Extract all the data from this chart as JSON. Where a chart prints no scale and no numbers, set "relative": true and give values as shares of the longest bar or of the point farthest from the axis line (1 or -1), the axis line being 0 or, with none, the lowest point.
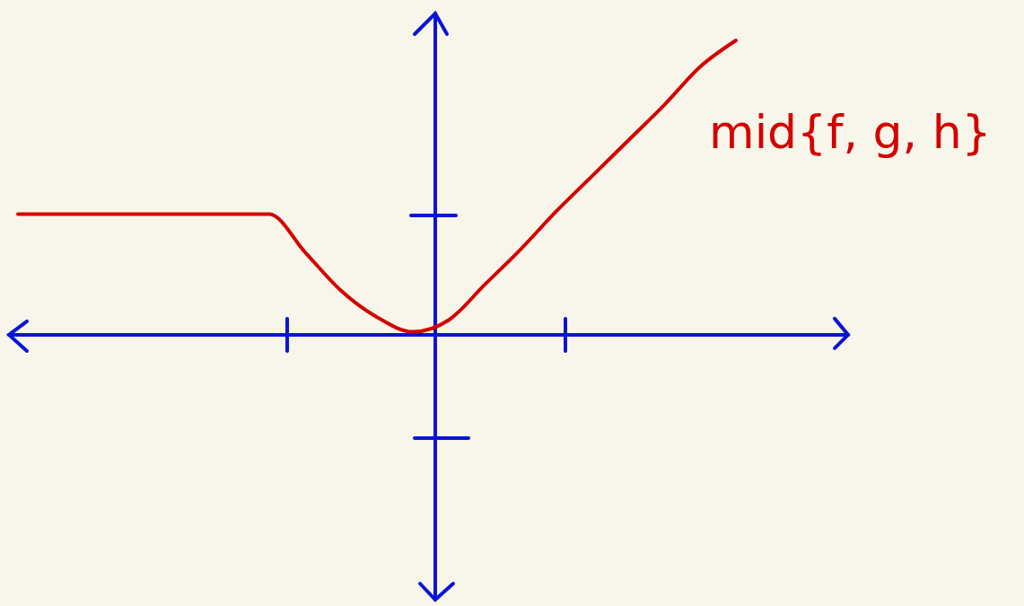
{
  "chart_data": {
    "type": "line",
    "relative": true,
    "categories": [
      null,
      null,
      null,
      null,
      null,
      null,
      null,
      null,
      null,
      null,
      null,
      null,
      null,
      null,
      null,
      null,
      null,
      null,
      null,
      null,
      null,
      null,
      null,
      null
    ],
    "series": [
      {
        "name": "mid{f, g, h}",
        "color": "#d40000",
        "values": [
          0.41,
          0.41,
          0.41,
          0.41,
          0.41,
          0.41,
          0.41,
          0.41,
          0.28,
          0.15,
          0.06,
          0.01,
          0.05,
          0.17,
          0.29,
          0.42,
          0.54,
          0.66,
          0.78,
          0.91,
          1,
          null,
          null,
          null
        ]
      }
    ]
  }
}
